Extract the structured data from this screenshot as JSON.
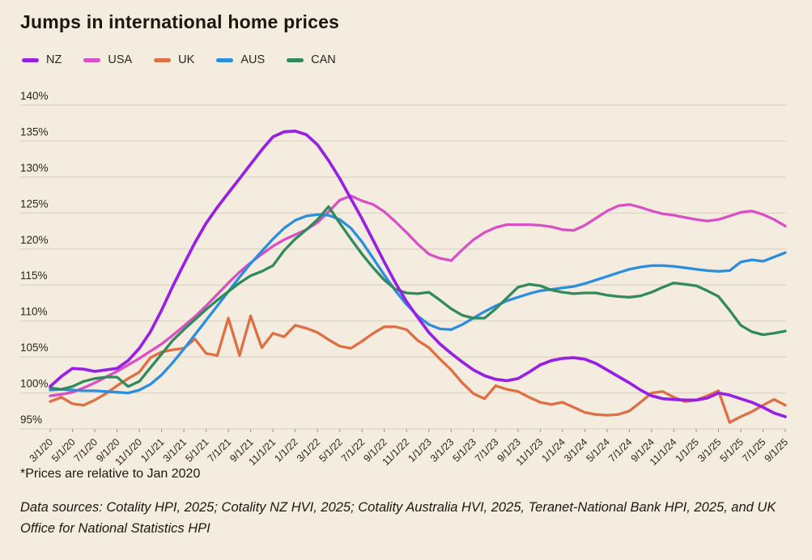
{
  "title": "Jumps in international home prices",
  "footnote": "*Prices are relative to Jan 2020",
  "source": "Data sources: Cotality HPI, 2025; Cotality NZ HVI, 2025; Cotality Australia HVI, 2025, Teranet-National Bank HPI, 2025, and UK Office for National Statistics HPI",
  "colors": {
    "background": "#f4ecde",
    "gridline": "#dbd2c1",
    "axis_text": "#2a251f",
    "title_text": "#1c1710"
  },
  "chart_data": {
    "type": "line",
    "title": "Jumps in international home prices",
    "xlabel": "",
    "ylabel": "",
    "ylim": [
      95,
      140
    ],
    "y_ticks": [
      "140%",
      "135%",
      "130%",
      "125%",
      "120%",
      "115%",
      "110%",
      "105%",
      "100%",
      "95%"
    ],
    "x_start": "3/1/20",
    "x_end": "9/1/25",
    "x_frequency": "monthly",
    "x_tick_labels": [
      "3/1/20",
      "5/1/20",
      "7/1/20",
      "9/1/20",
      "11/1/20",
      "1/1/21",
      "3/1/21",
      "5/1/21",
      "7/1/21",
      "9/1/21",
      "11/1/21",
      "1/1/22",
      "3/1/22",
      "5/1/22",
      "7/1/22",
      "9/1/22",
      "11/1/22",
      "1/1/23",
      "3/1/23",
      "5/1/23",
      "7/1/23",
      "9/1/23",
      "11/1/23",
      "1/1/24",
      "3/1/24",
      "5/1/24",
      "7/1/24",
      "9/1/24",
      "11/1/24",
      "1/1/25",
      "3/1/25",
      "5/1/25",
      "7/1/25",
      "9/1/25"
    ],
    "legend_position": "top-left",
    "grid": true,
    "series": [
      {
        "name": "NZ",
        "color": "#9820e3",
        "values": [
          100.9,
          102.3,
          103.4,
          103.3,
          103.0,
          103.2,
          103.4,
          104.5,
          106.2,
          108.5,
          111.5,
          114.8,
          117.9,
          120.9,
          123.6,
          125.8,
          127.8,
          129.8,
          131.8,
          133.8,
          135.6,
          136.3,
          136.4,
          135.9,
          134.5,
          132.3,
          129.8,
          127.0,
          124.2,
          121.2,
          118.2,
          115.3,
          112.7,
          110.5,
          108.4,
          106.8,
          105.5,
          104.3,
          103.2,
          102.4,
          101.9,
          101.7,
          102.0,
          102.9,
          103.9,
          104.5,
          104.8,
          104.9,
          104.7,
          104.1,
          103.2,
          102.3,
          101.4,
          100.4,
          99.6,
          99.2,
          99.1,
          99.0,
          99.0,
          99.3,
          100.0,
          99.7,
          99.2,
          98.7,
          98.0,
          97.2,
          96.7
        ]
      },
      {
        "name": "USA",
        "color": "#d94fc5",
        "values": [
          99.6,
          99.8,
          100.1,
          100.7,
          101.4,
          102.2,
          103.0,
          103.9,
          104.8,
          105.8,
          106.8,
          108.0,
          109.3,
          110.6,
          112.1,
          113.7,
          115.3,
          116.8,
          118.1,
          119.3,
          120.4,
          121.3,
          122.0,
          122.7,
          123.7,
          125.2,
          126.8,
          127.4,
          126.7,
          126.2,
          125.2,
          123.8,
          122.3,
          120.7,
          119.3,
          118.7,
          118.4,
          119.9,
          121.3,
          122.3,
          123.0,
          123.4,
          123.4,
          123.4,
          123.3,
          123.1,
          122.7,
          122.6,
          123.3,
          124.3,
          125.3,
          126.0,
          126.2,
          125.8,
          125.3,
          124.9,
          124.7,
          124.4,
          124.1,
          123.9,
          124.1,
          124.6,
          125.1,
          125.3,
          124.8,
          124.1,
          123.2
        ]
      },
      {
        "name": "UK",
        "color": "#de6f45",
        "values": [
          98.8,
          99.4,
          98.5,
          98.3,
          99.0,
          99.9,
          101.0,
          102.0,
          102.9,
          104.9,
          105.7,
          106.0,
          106.2,
          107.5,
          105.5,
          105.2,
          110.4,
          105.2,
          110.7,
          106.3,
          108.3,
          107.8,
          109.4,
          109.0,
          108.4,
          107.4,
          106.5,
          106.2,
          107.2,
          108.3,
          109.2,
          109.2,
          108.8,
          107.3,
          106.3,
          104.7,
          103.2,
          101.4,
          99.9,
          99.2,
          101.0,
          100.5,
          100.2,
          99.4,
          98.7,
          98.4,
          98.7,
          98.0,
          97.3,
          97.0,
          96.9,
          97.0,
          97.5,
          98.7,
          100.0,
          100.2,
          99.4,
          98.8,
          99.0,
          99.6,
          100.3,
          95.9,
          96.7,
          97.4,
          98.3,
          99.1,
          98.3
        ]
      },
      {
        "name": "AUS",
        "color": "#2c8ede",
        "values": [
          100.4,
          100.5,
          100.4,
          100.3,
          100.3,
          100.2,
          100.1,
          100.0,
          100.4,
          101.2,
          102.5,
          104.2,
          106.1,
          108.1,
          110.1,
          112.1,
          114.1,
          116.1,
          118.0,
          119.7,
          121.4,
          122.9,
          124.0,
          124.6,
          124.8,
          124.7,
          124.1,
          122.9,
          121.0,
          118.7,
          116.4,
          114.2,
          112.3,
          110.7,
          109.5,
          108.9,
          108.8,
          109.5,
          110.4,
          111.3,
          112.1,
          112.8,
          113.3,
          113.8,
          114.2,
          114.4,
          114.6,
          114.8,
          115.2,
          115.7,
          116.2,
          116.7,
          117.2,
          117.5,
          117.7,
          117.7,
          117.6,
          117.4,
          117.2,
          117.0,
          116.9,
          117.0,
          118.2,
          118.5,
          118.3,
          118.9,
          119.5
        ]
      },
      {
        "name": "CAN",
        "color": "#318a5b",
        "values": [
          100.7,
          100.5,
          100.9,
          101.6,
          102.0,
          102.2,
          102.2,
          100.9,
          101.6,
          103.5,
          105.4,
          107.3,
          108.8,
          110.2,
          111.6,
          112.9,
          114.1,
          115.3,
          116.3,
          116.9,
          117.7,
          119.8,
          121.4,
          122.7,
          124.1,
          125.9,
          123.6,
          121.4,
          119.3,
          117.4,
          115.7,
          114.4,
          113.9,
          113.8,
          114.0,
          112.9,
          111.7,
          110.8,
          110.4,
          110.4,
          111.7,
          113.2,
          114.7,
          115.1,
          114.9,
          114.3,
          114.0,
          113.8,
          113.9,
          113.9,
          113.6,
          113.4,
          113.3,
          113.5,
          114.0,
          114.7,
          115.3,
          115.1,
          114.9,
          114.2,
          113.4,
          111.5,
          109.4,
          108.5,
          108.1,
          108.3,
          108.6
        ]
      }
    ]
  }
}
